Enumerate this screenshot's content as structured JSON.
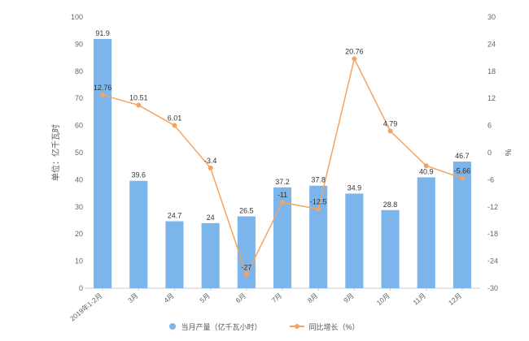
{
  "chart_data": {
    "type": "bar",
    "categories": [
      "2019年1-2月",
      "3月",
      "4月",
      "5月",
      "6月",
      "7月",
      "8月",
      "9月",
      "10月",
      "11月",
      "12月"
    ],
    "series": [
      {
        "name": "当月产量（亿千瓦小时）",
        "type": "bar",
        "axis": "left",
        "values": [
          91.9,
          39.6,
          24.7,
          24,
          26.5,
          37.2,
          37.8,
          34.9,
          28.8,
          40.9,
          46.7
        ],
        "labels": [
          "91.9",
          "39.6",
          "24.7",
          "24",
          "26.5",
          "37.2",
          "37.8",
          "34.9",
          "28.8",
          "40.9",
          "46.7"
        ]
      },
      {
        "name": "同比增长（%）",
        "type": "line",
        "axis": "right",
        "values": [
          12.76,
          10.51,
          6.01,
          -3.4,
          -27,
          -11,
          -12.5,
          20.76,
          4.79,
          -2.9,
          -5.66
        ],
        "labels": [
          "12.76",
          "10.51",
          "6.01",
          "-3.4",
          "-27",
          "-11",
          "-12.5",
          "20.76",
          "4.79",
          "",
          "-5.66"
        ]
      }
    ],
    "ylabel": "单位：亿千瓦时",
    "y2label": "%",
    "ylim": [
      0,
      100
    ],
    "y2lim": [
      -30,
      30
    ],
    "yticks": [
      "0",
      "10",
      "20",
      "30",
      "40",
      "50",
      "60",
      "70",
      "80",
      "90",
      "100"
    ],
    "y2ticks": [
      "-30",
      "-24",
      "-18",
      "-12",
      "-6",
      "0",
      "6",
      "12",
      "18",
      "24",
      "30"
    ],
    "colors": {
      "bar": "#7cb5ec",
      "line": "#f4a460",
      "axis_text": "#666666",
      "label": "#333333"
    },
    "legend_position": "bottom",
    "grid": false
  }
}
